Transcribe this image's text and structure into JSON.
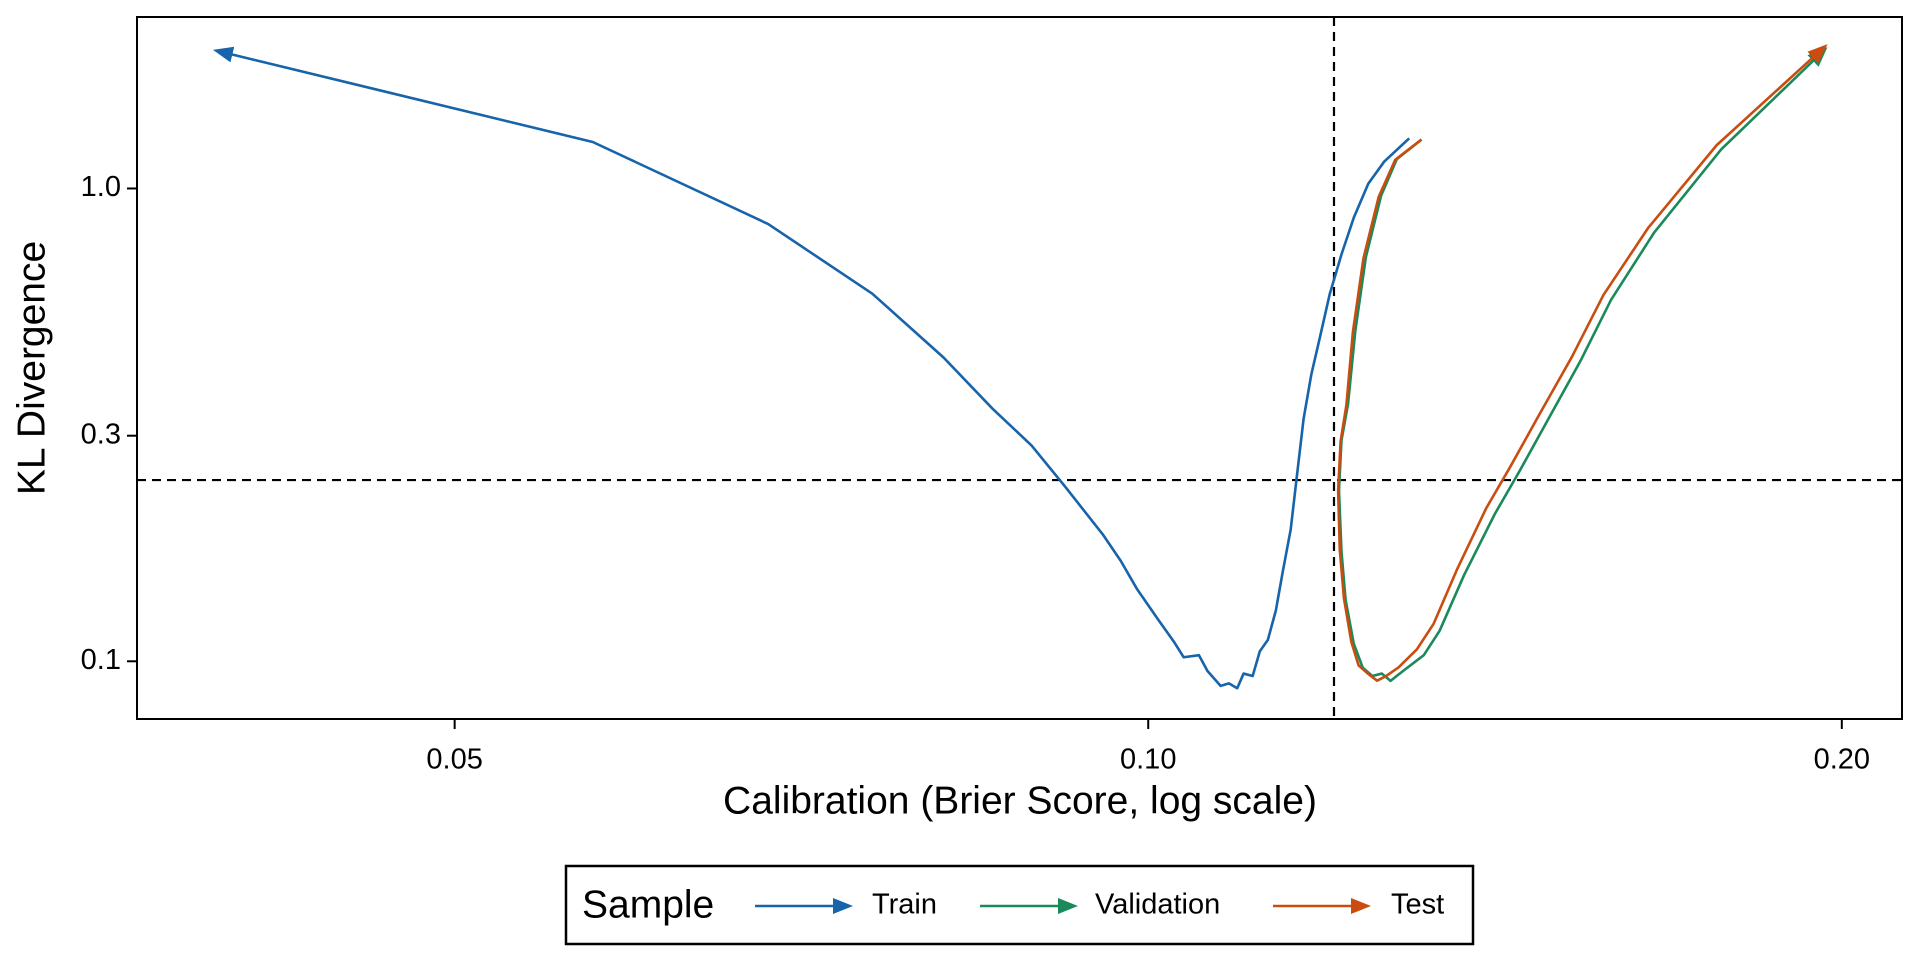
{
  "chart_data": {
    "type": "line",
    "x_label": "Calibration (Brier Score, log scale)",
    "y_label": "KL Divergence",
    "xlog": true,
    "ylog": true,
    "xlim": [
      0.0364,
      0.2124
    ],
    "ylim": [
      0.0755,
      2.305
    ],
    "xticks": [
      {
        "value": 0.05,
        "label": "0.05"
      },
      {
        "value": 0.1,
        "label": "0.10"
      },
      {
        "value": 0.2,
        "label": "0.20"
      }
    ],
    "yticks": [
      0.1,
      0.3,
      {
        "value": 1,
        "label": "1.0"
      }
    ],
    "reference_lines": {
      "x": 0.1204,
      "y": 0.2417
    },
    "legend_title": "Sample",
    "legend_position": "bottom",
    "series": [
      {
        "name": "Train",
        "color": "#1764ab",
        "x": [
          0.1298,
          0.1266,
          0.1246,
          0.1228,
          0.1213,
          0.1199,
          0.1187,
          0.1177,
          0.1168,
          0.116,
          0.1153,
          0.1144,
          0.1136,
          0.1127,
          0.1118,
          0.111,
          0.11,
          0.1093,
          0.1084,
          0.1075,
          0.1061,
          0.1052,
          0.1036,
          0.1026,
          0.101,
          0.0989,
          0.0973,
          0.0956,
          0.0921,
          0.089,
          0.0856,
          0.0815,
          0.0759,
          0.0684,
          0.0574,
          0.0395
        ],
        "values": [
          1.277,
          1.14,
          1.024,
          0.867,
          0.725,
          0.599,
          0.483,
          0.404,
          0.326,
          0.245,
          0.19,
          0.155,
          0.128,
          0.111,
          0.105,
          0.0931,
          0.0942,
          0.0877,
          0.0898,
          0.0887,
          0.0954,
          0.103,
          0.102,
          0.11,
          0.1225,
          0.142,
          0.163,
          0.185,
          0.233,
          0.286,
          0.342,
          0.439,
          0.599,
          0.841,
          1.254,
          1.951
        ]
      },
      {
        "name": "Validation",
        "color": "#1a8a5a",
        "x": [
          0.1314,
          0.1282,
          0.1262,
          0.1243,
          0.123,
          0.1221,
          0.1213,
          0.121,
          0.1213,
          0.1218,
          0.1228,
          0.1239,
          0.1251,
          0.1263,
          0.1274,
          0.129,
          0.1317,
          0.1338,
          0.1371,
          0.1414,
          0.1449,
          0.1494,
          0.154,
          0.1588,
          0.1658,
          0.1773,
          0.1963
        ],
        "values": [
          1.269,
          1.154,
          0.965,
          0.716,
          0.501,
          0.35,
          0.293,
          0.23,
          0.171,
          0.135,
          0.109,
          0.097,
          0.0931,
          0.0942,
          0.0909,
          0.0954,
          0.103,
          0.116,
          0.152,
          0.205,
          0.252,
          0.33,
          0.431,
          0.581,
          0.807,
          1.21,
          1.951
        ]
      },
      {
        "name": "Test",
        "color": "#c94d10",
        "x": [
          0.1314,
          0.128,
          0.1259,
          0.124,
          0.1227,
          0.1219,
          0.1212,
          0.1209,
          0.1211,
          0.1216,
          0.1225,
          0.1234,
          0.1246,
          0.1257,
          0.1268,
          0.1284,
          0.1308,
          0.133,
          0.1362,
          0.1402,
          0.1436,
          0.148,
          0.1527,
          0.1576,
          0.1648,
          0.1765,
          0.1963
        ],
        "values": [
          1.269,
          1.15,
          0.96,
          0.712,
          0.498,
          0.348,
          0.292,
          0.23,
          0.172,
          0.136,
          0.11,
          0.098,
          0.094,
          0.091,
          0.093,
          0.097,
          0.106,
          0.12,
          0.157,
          0.211,
          0.258,
          0.336,
          0.44,
          0.595,
          0.825,
          1.235,
          1.98
        ]
      }
    ]
  }
}
